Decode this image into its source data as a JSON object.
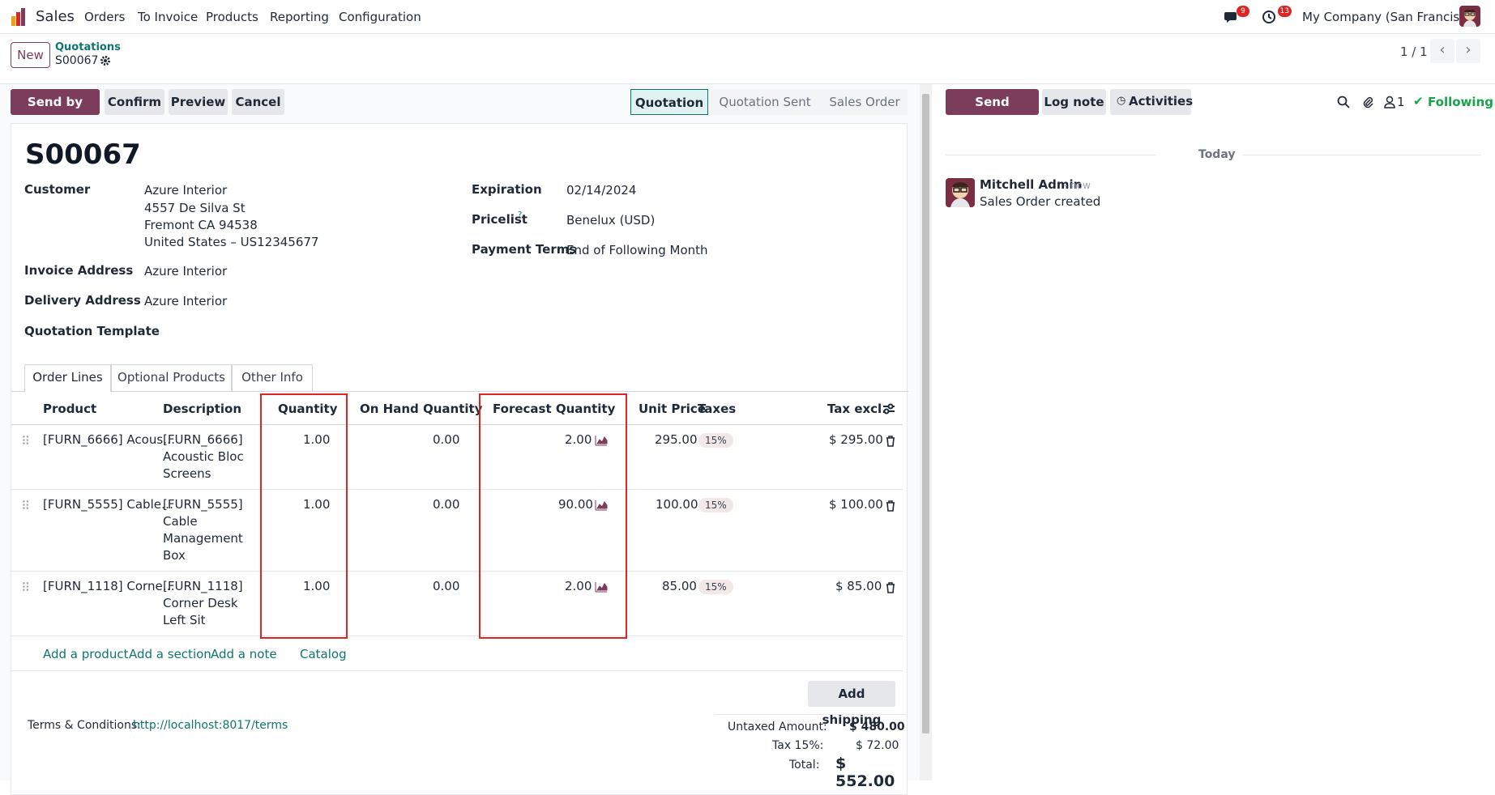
{
  "nav": {
    "app": "Sales",
    "menu": [
      "Orders",
      "To Invoice",
      "Products",
      "Reporting",
      "Configuration"
    ],
    "messages_badge": "9",
    "activities_badge": "13",
    "company": "My Company (San Francisco)"
  },
  "control": {
    "new_label": "New",
    "breadcrumb_parent": "Quotations",
    "breadcrumb_current": "S00067",
    "pager": "1 / 1"
  },
  "actions": {
    "send_email": "Send by Email",
    "confirm": "Confirm",
    "preview": "Preview",
    "cancel": "Cancel"
  },
  "stages": [
    "Quotation",
    "Quotation Sent",
    "Sales Order"
  ],
  "form": {
    "title": "S00067",
    "customer_label": "Customer",
    "customer_lines": [
      "Azure Interior",
      "4557 De Silva St",
      "Fremont CA 94538",
      "United States – US12345677"
    ],
    "invoice_label": "Invoice Address",
    "invoice_value": "Azure Interior",
    "delivery_label": "Delivery Address",
    "delivery_value": "Azure Interior",
    "template_label": "Quotation Template",
    "expiration_label": "Expiration",
    "expiration_value": "02/14/2024",
    "pricelist_label": "Pricelist",
    "pricelist_help": "?",
    "pricelist_value": "Benelux (USD)",
    "terms_label": "Payment Terms",
    "terms_value": "End of Following Month"
  },
  "tabs": [
    "Order Lines",
    "Optional Products",
    "Other Info"
  ],
  "columns": [
    "Product",
    "Description",
    "Quantity",
    "On Hand Quantity",
    "Forecast Quantity",
    "Unit Price",
    "Taxes",
    "Tax excl."
  ],
  "lines": [
    {
      "product": "[FURN_6666] Acous…",
      "desc": [
        "[FURN_6666]",
        "Acoustic Bloc",
        "Screens"
      ],
      "qty": "1.00",
      "onhand": "0.00",
      "forecast": "2.00",
      "price": "295.00",
      "tax": "15%",
      "subtotal": "$ 295.00"
    },
    {
      "product": "[FURN_5555] Cable…",
      "desc": [
        "[FURN_5555]",
        "Cable",
        "Management",
        "Box"
      ],
      "qty": "1.00",
      "onhand": "0.00",
      "forecast": "90.00",
      "price": "100.00",
      "tax": "15%",
      "subtotal": "$ 100.00"
    },
    {
      "product": "[FURN_1118] Corne…",
      "desc": [
        "[FURN_1118]",
        "Corner Desk",
        "Left Sit"
      ],
      "qty": "1.00",
      "onhand": "0.00",
      "forecast": "2.00",
      "price": "85.00",
      "tax": "15%",
      "subtotal": "$ 85.00"
    }
  ],
  "add_links": {
    "product": "Add a product",
    "section": "Add a section",
    "note": "Add a note",
    "catalog": "Catalog"
  },
  "shipping": "Add shipping",
  "terms": {
    "label": "Terms & Conditions:",
    "url": "http://localhost:8017/terms"
  },
  "totals": {
    "untaxed_label": "Untaxed Amount:",
    "untaxed": "$ 480.00",
    "tax_label": "Tax 15%:",
    "tax": "$ 72.00",
    "total_label": "Total:",
    "total": "$ 552.00"
  },
  "chatter": {
    "send_message": "Send message",
    "log_note": "Log note",
    "activities": "Activities",
    "followers": "1",
    "following": "Following",
    "today": "Today",
    "author": "Mitchell Admin",
    "time": "- now",
    "message": "Sales Order created"
  }
}
